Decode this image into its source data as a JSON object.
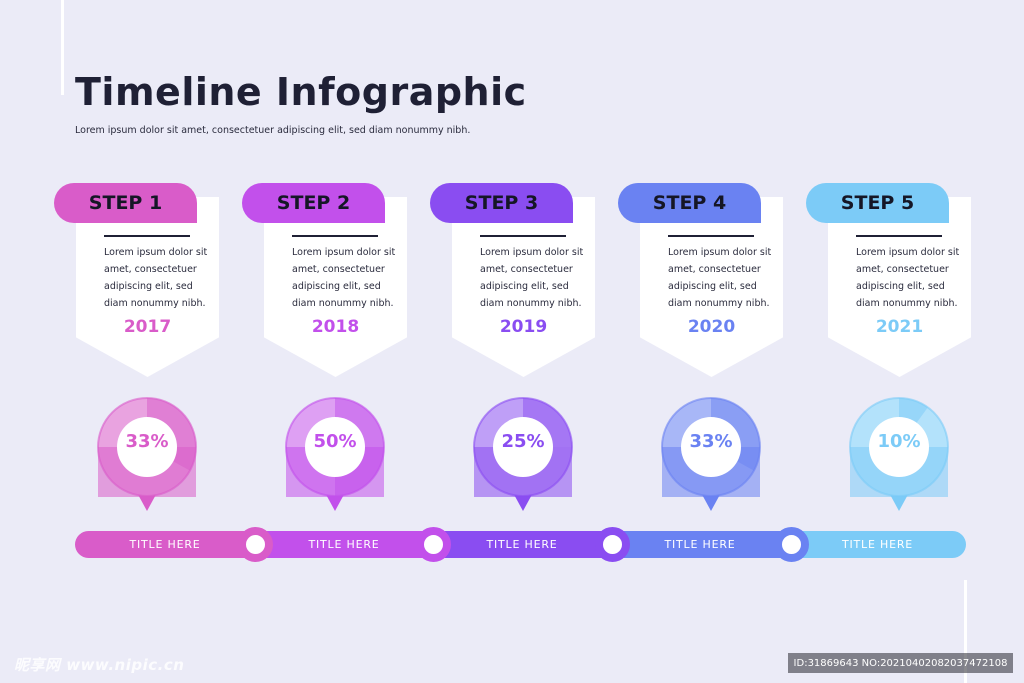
{
  "header": {
    "title": "Timeline Infographic",
    "subtitle": "Lorem ipsum dolor sit amet, consectetuer adipiscing elit, sed diam nonummy nibh."
  },
  "steps": [
    {
      "label": "STEP 1",
      "body": "Lorem ipsum dolor sit\namet, consectetuer\nadipiscing elit, sed\ndiam nonummy nibh.",
      "year": "2017",
      "percent_label": "33%",
      "percent": 33,
      "bar_title": "TITLE HERE",
      "color": "#d95cc9",
      "light": "#e9a3e0",
      "mid": "#e07fd4"
    },
    {
      "label": "STEP 2",
      "body": "Lorem ipsum dolor sit\namet, consectetuer\nadipiscing elit, sed\ndiam nonummy nibh.",
      "year": "2018",
      "percent_label": "50%",
      "percent": 50,
      "bar_title": "TITLE HERE",
      "color": "#c250eb",
      "light": "#dea0f3",
      "mid": "#cf79ef"
    },
    {
      "label": "STEP 3",
      "body": "Lorem ipsum dolor sit\namet, consectetuer\nadipiscing elit, sed\ndiam nonummy nibh.",
      "year": "2019",
      "percent_label": "25%",
      "percent": 25,
      "bar_title": "TITLE HERE",
      "color": "#8a4df1",
      "light": "#bf9ff7",
      "mid": "#a577f4"
    },
    {
      "label": "STEP 4",
      "body": "Lorem ipsum dolor sit\namet, consectetuer\nadipiscing elit, sed\ndiam nonummy nibh.",
      "year": "2020",
      "percent_label": "33%",
      "percent": 33,
      "bar_title": "TITLE HERE",
      "color": "#6a82f2",
      "light": "#a8b7f7",
      "mid": "#8a9ef4"
    },
    {
      "label": "STEP 5",
      "body": "Lorem ipsum dolor sit\namet, consectetuer\nadipiscing elit, sed\ndiam nonummy nibh.",
      "year": "2021",
      "percent_label": "10%",
      "percent": 10,
      "bar_title": "TITLE HERE",
      "color": "#7ccbf7",
      "light": "#b3e2fb",
      "mid": "#97d6f9"
    }
  ],
  "watermark": {
    "site": "昵享网 www.nipic.cn",
    "id": "ID:31869643 NO:20210402082037472108"
  }
}
